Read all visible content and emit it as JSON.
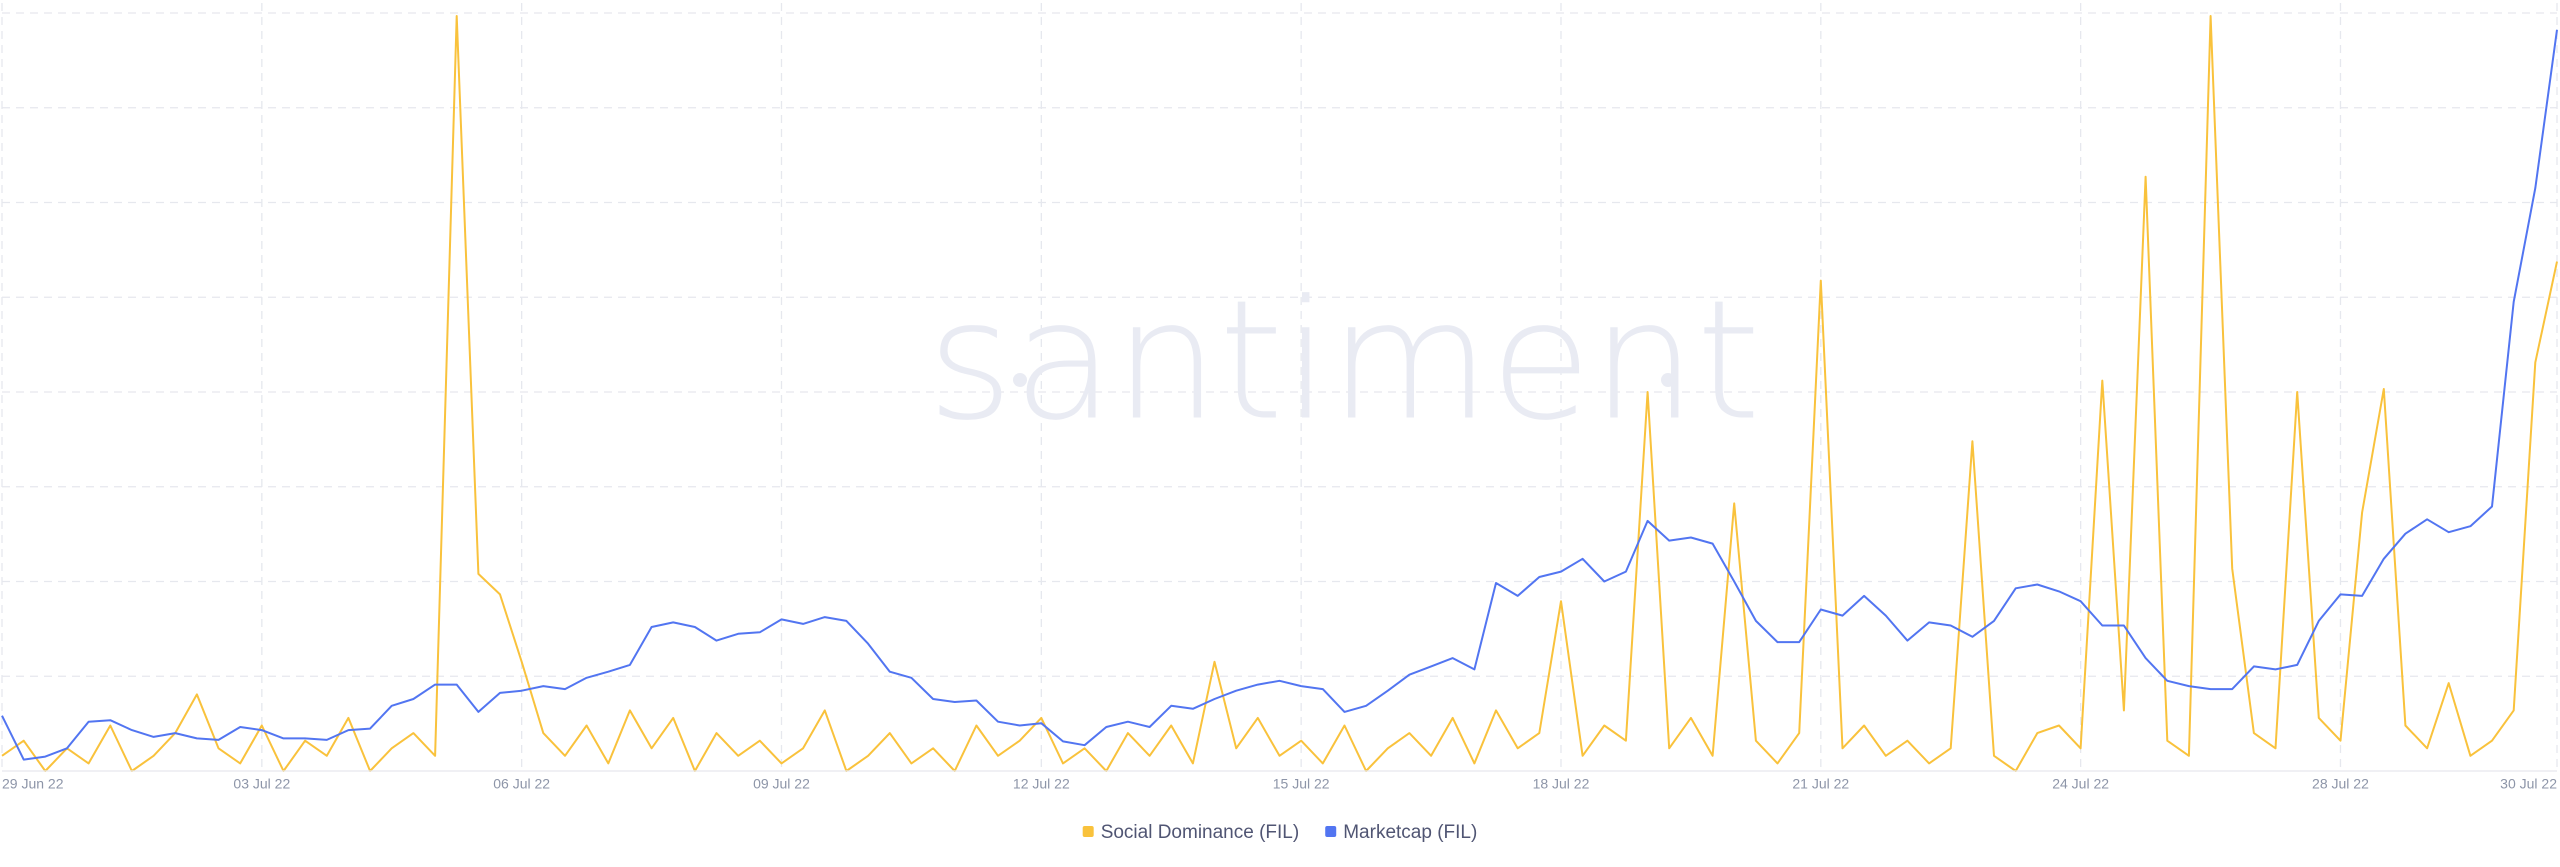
{
  "chart_data": {
    "type": "line",
    "watermark": "santiment",
    "categories": [
      "29 Jun 22",
      null,
      null,
      null,
      null,
      null,
      null,
      null,
      null,
      null,
      null,
      null,
      "03 Jul 22",
      null,
      null,
      null,
      null,
      null,
      null,
      null,
      null,
      null,
      null,
      null,
      "06 Jul 22",
      null,
      null,
      null,
      null,
      null,
      null,
      null,
      null,
      null,
      null,
      null,
      "09 Jul 22",
      null,
      null,
      null,
      null,
      null,
      null,
      null,
      null,
      null,
      null,
      null,
      "12 Jul 22",
      null,
      null,
      null,
      null,
      null,
      null,
      null,
      null,
      null,
      null,
      null,
      "15 Jul 22",
      null,
      null,
      null,
      null,
      null,
      null,
      null,
      null,
      null,
      null,
      null,
      "18 Jul 22",
      null,
      null,
      null,
      null,
      null,
      null,
      null,
      null,
      null,
      null,
      null,
      "21 Jul 22",
      null,
      null,
      null,
      null,
      null,
      null,
      null,
      null,
      null,
      null,
      null,
      "24 Jul 22",
      null,
      null,
      null,
      null,
      null,
      null,
      null,
      null,
      null,
      null,
      null,
      "28 Jul 22",
      null,
      null,
      null,
      null,
      null,
      null,
      null,
      null,
      null,
      "30 Jul 22"
    ],
    "series": [
      {
        "name": "Social Dominance (FIL)",
        "color": "#f9c23c",
        "values": [
          2,
          4,
          0,
          3,
          1,
          6,
          0,
          2,
          5,
          10.1,
          3,
          1,
          6,
          0,
          4,
          2,
          7,
          0,
          3,
          5,
          2,
          99.6,
          26,
          23.3,
          14.4,
          5,
          2,
          6,
          1,
          8,
          3,
          7,
          0,
          5,
          2,
          4,
          1,
          3,
          8,
          0,
          2,
          5,
          1,
          3,
          0,
          6,
          2,
          4,
          7,
          1,
          3,
          0,
          5,
          2,
          6,
          1,
          14.4,
          3,
          7,
          2,
          4,
          1,
          6,
          0,
          3,
          5,
          2,
          7,
          1,
          8,
          3,
          5,
          22.4,
          2,
          6,
          4,
          50.0,
          3,
          7,
          2,
          35.3,
          4,
          1,
          5,
          64.7,
          3,
          6,
          2,
          4,
          1,
          3,
          43.5,
          2,
          0,
          5,
          6,
          3,
          51.5,
          8,
          78.4,
          4,
          2,
          99.6,
          26.7,
          5,
          3,
          50.0,
          7,
          4,
          34.1,
          50.4,
          6,
          3,
          11.6,
          2,
          4,
          8,
          53.9,
          67.2
        ]
      },
      {
        "name": "Marketcap (FIL)",
        "color": "#5275f1",
        "axis": "y2",
        "values": [
          7.3,
          1.5,
          1.9,
          3.0,
          6.5,
          6.7,
          5.4,
          4.5,
          5.0,
          4.3,
          4.1,
          5.8,
          5.4,
          4.3,
          4.3,
          4.1,
          5.4,
          5.6,
          8.6,
          9.5,
          11.4,
          11.4,
          7.8,
          10.3,
          10.6,
          11.2,
          10.8,
          12.3,
          13.1,
          14.0,
          19.0,
          19.6,
          19.0,
          17.2,
          18.1,
          18.3,
          20.0,
          19.4,
          20.3,
          19.8,
          16.8,
          13.1,
          12.3,
          9.5,
          9.1,
          9.3,
          6.5,
          6.0,
          6.3,
          3.9,
          3.4,
          5.8,
          6.5,
          5.8,
          8.6,
          8.2,
          9.5,
          10.6,
          11.4,
          11.9,
          11.2,
          10.8,
          7.8,
          8.6,
          10.6,
          12.7,
          13.8,
          14.9,
          13.4,
          24.8,
          23.1,
          25.6,
          26.3,
          28.0,
          25.0,
          26.3,
          33.0,
          30.4,
          30.8,
          30.0,
          25.0,
          19.8,
          17.0,
          17.0,
          21.3,
          20.5,
          23.1,
          20.5,
          17.2,
          19.6,
          19.2,
          17.7,
          19.8,
          24.1,
          24.6,
          23.7,
          22.4,
          19.2,
          19.2,
          14.9,
          11.9,
          11.2,
          10.8,
          10.8,
          13.8,
          13.4,
          14.0,
          19.8,
          23.3,
          23.1,
          28.0,
          31.3,
          33.2,
          31.5,
          32.3,
          34.9,
          61.9,
          76.9,
          97.8
        ]
      }
    ],
    "ylim": [
      0,
      100
    ],
    "y2lim": [
      0,
      100
    ],
    "grid": true
  }
}
